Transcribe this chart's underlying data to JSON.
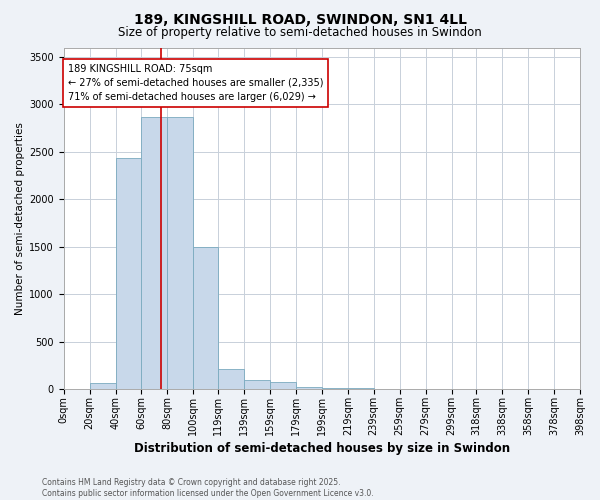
{
  "title": "189, KINGSHILL ROAD, SWINDON, SN1 4LL",
  "subtitle": "Size of property relative to semi-detached houses in Swindon",
  "xlabel": "Distribution of semi-detached houses by size in Swindon",
  "ylabel": "Number of semi-detached properties",
  "bin_labels": [
    "0sqm",
    "20sqm",
    "40sqm",
    "60sqm",
    "80sqm",
    "100sqm",
    "119sqm",
    "139sqm",
    "159sqm",
    "179sqm",
    "199sqm",
    "219sqm",
    "239sqm",
    "259sqm",
    "279sqm",
    "299sqm",
    "318sqm",
    "338sqm",
    "358sqm",
    "378sqm",
    "398sqm"
  ],
  "bin_edges": [
    0,
    20,
    40,
    60,
    80,
    100,
    119,
    139,
    159,
    179,
    199,
    219,
    239,
    259,
    279,
    299,
    318,
    338,
    358,
    378,
    398
  ],
  "bar_heights": [
    5,
    70,
    2440,
    2870,
    2870,
    1500,
    220,
    100,
    80,
    30,
    20,
    10,
    5,
    5,
    3,
    2,
    2,
    1,
    1,
    0
  ],
  "bar_color": "#c8d8ea",
  "bar_edge_color": "#7aaabf",
  "property_size": 75,
  "red_line_color": "#cc0000",
  "annotation_text": "189 KINGSHILL ROAD: 75sqm\n← 27% of semi-detached houses are smaller (2,335)\n71% of semi-detached houses are larger (6,029) →",
  "annotation_box_facecolor": "#ffffff",
  "annotation_box_edgecolor": "#cc0000",
  "ylim": [
    0,
    3600
  ],
  "yticks": [
    0,
    500,
    1000,
    1500,
    2000,
    2500,
    3000,
    3500
  ],
  "footer_line1": "Contains HM Land Registry data © Crown copyright and database right 2025.",
  "footer_line2": "Contains public sector information licensed under the Open Government Licence v3.0.",
  "bg_color": "#eef2f7",
  "plot_bg_color": "#ffffff",
  "grid_color": "#c8d0da",
  "title_fontsize": 10,
  "subtitle_fontsize": 8.5,
  "xlabel_fontsize": 8.5,
  "ylabel_fontsize": 7.5,
  "tick_fontsize": 7,
  "annotation_fontsize": 7,
  "footer_fontsize": 5.5
}
